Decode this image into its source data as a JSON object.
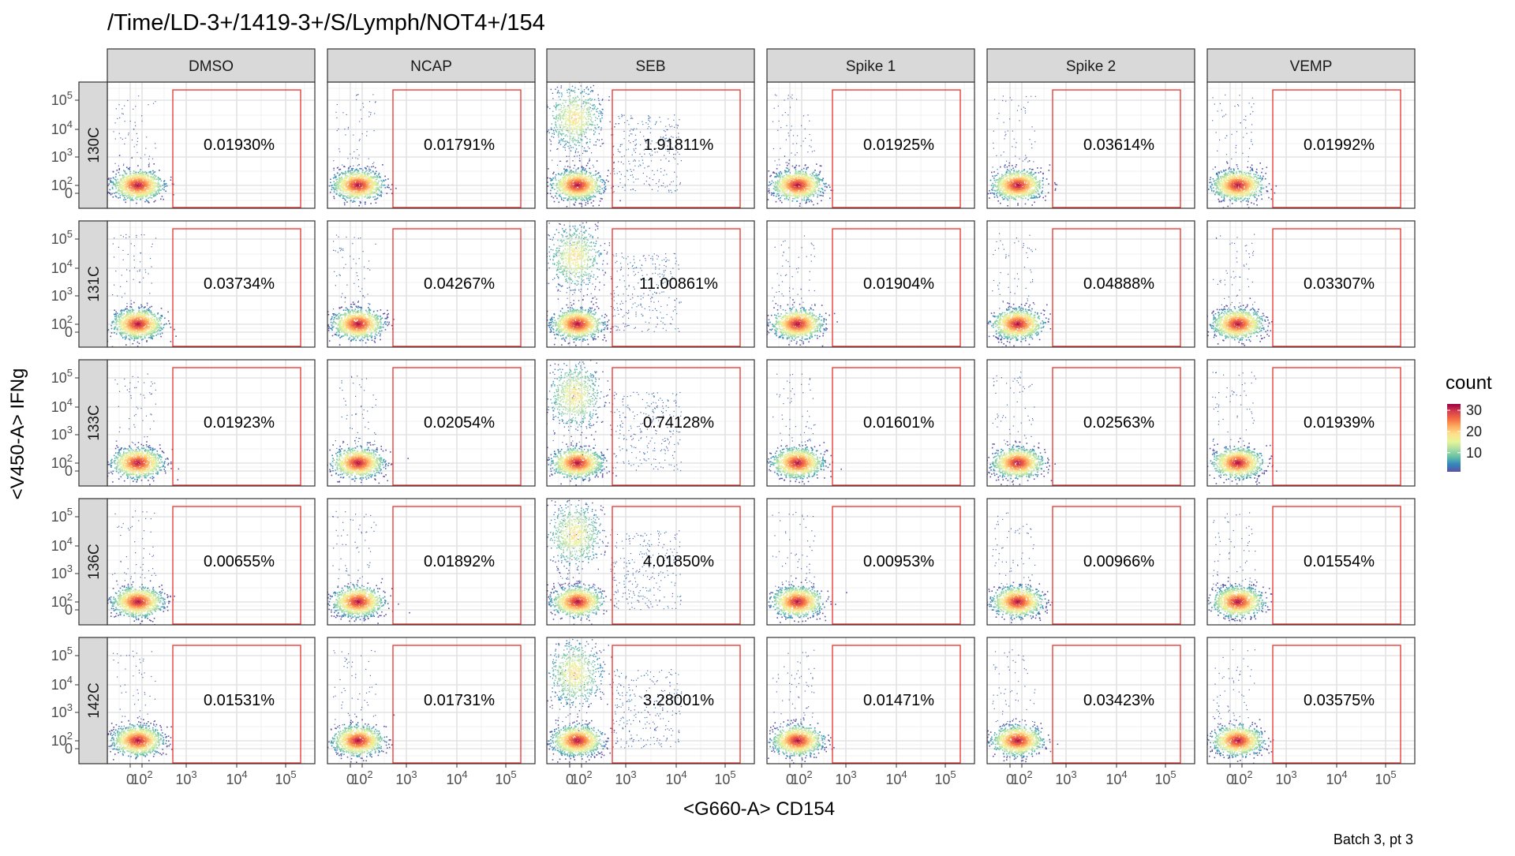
{
  "chart_data": {
    "type": "scatter",
    "subtype": "faceted flow cytometry density plot with gate",
    "title": "/Time/LD-3+/1419-3+/S/Lymph/NOT4+/154",
    "xlabel": "<G660-A> CD154",
    "ylabel": "<V450-A> IFNg",
    "caption": "Batch 3, pt 3",
    "columns": [
      "DMSO",
      "NCAP",
      "SEB",
      "Spike 1",
      "Spike 2",
      "VEMP"
    ],
    "rows": [
      "130C",
      "131C",
      "133C",
      "136C",
      "142C"
    ],
    "x_ticks": [
      "0",
      "10^2",
      "10^3",
      "10^4",
      "10^5"
    ],
    "y_ticks": [
      "0",
      "10^2",
      "10^3",
      "10^4",
      "10^5"
    ],
    "scale": "biexponential",
    "gate_color": "#e8312c",
    "grid": true,
    "legend": {
      "title": "count",
      "breaks": [
        "10",
        "20",
        "30"
      ],
      "palette": [
        "#5e4fa2",
        "#3288bd",
        "#66c2a5",
        "#abdda4",
        "#e6f598",
        "#fee08b",
        "#fdae61",
        "#f46d43",
        "#d53e4f",
        "#9e0142"
      ],
      "position": "right"
    },
    "values": [
      [
        "0.01930%",
        "0.01791%",
        "1.91811%",
        "0.01925%",
        "0.03614%",
        "0.01992%"
      ],
      [
        "0.03734%",
        "0.04267%",
        "11.00861%",
        "0.01904%",
        "0.04888%",
        "0.03307%"
      ],
      [
        "0.01923%",
        "0.02054%",
        "0.74128%",
        "0.01601%",
        "0.02563%",
        "0.01939%"
      ],
      [
        "0.00655%",
        "0.01892%",
        "4.01850%",
        "0.00953%",
        "0.00966%",
        "0.01554%"
      ],
      [
        "0.01531%",
        "0.01731%",
        "3.28001%",
        "0.01471%",
        "0.03423%",
        "0.03575%"
      ]
    ]
  }
}
